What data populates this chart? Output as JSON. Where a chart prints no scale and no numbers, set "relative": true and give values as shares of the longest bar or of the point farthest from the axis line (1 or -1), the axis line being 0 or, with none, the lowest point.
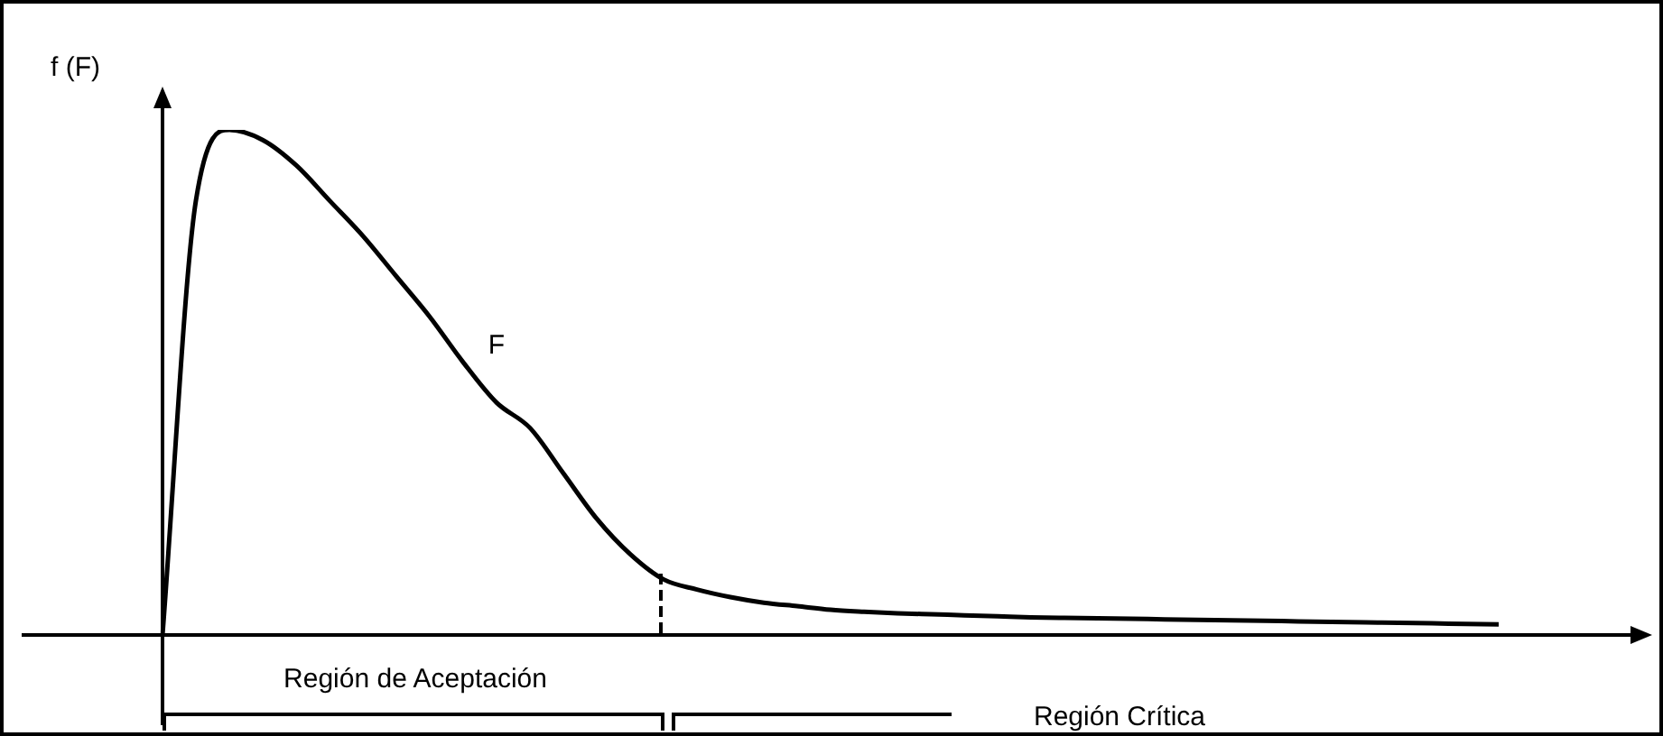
{
  "chart_data": {
    "type": "line",
    "relative": true,
    "ylabel": "f (F)",
    "categories": [
      null,
      null,
      null,
      null,
      null,
      null,
      null,
      null,
      null,
      null,
      null,
      null,
      null,
      null,
      null,
      null,
      null,
      null,
      null,
      null,
      null,
      null,
      null,
      null,
      null,
      null,
      null,
      null,
      null,
      null,
      null,
      null,
      null,
      null,
      null,
      null,
      null,
      null,
      null,
      null,
      null
    ],
    "series": [
      {
        "color": "#000000",
        "values": [
          0,
          0.86,
          1,
          0.98,
          0.93,
          0.86,
          0.79,
          0.71,
          0.63,
          0.54,
          0.46,
          0.41,
          0.32,
          0.23,
          0.16,
          0.11,
          0.09,
          0.075,
          0.064,
          0.057,
          0.05,
          0.046,
          0.043,
          0.041,
          0.039,
          0.037,
          0.035,
          0.034,
          0.033,
          0.032,
          0.031,
          0.03,
          0.029,
          0.028,
          0.027,
          0.026,
          0.025,
          0.024,
          0.023,
          0.022,
          0.021
        ]
      }
    ],
    "annotations": [
      "F",
      "Región de Aceptación",
      "Región Crítica"
    ],
    "legend": false
  }
}
